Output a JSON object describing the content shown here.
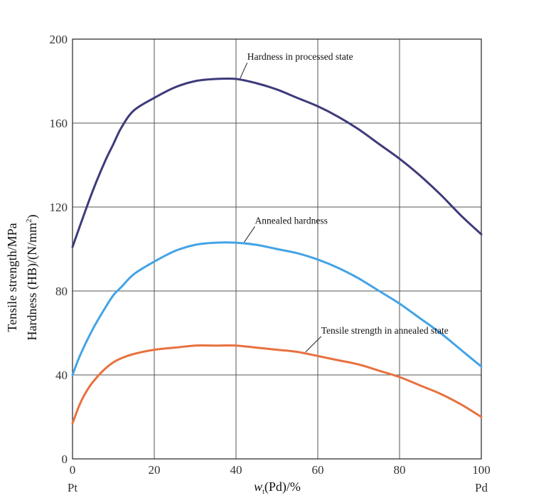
{
  "chart_data": {
    "type": "line",
    "xlabel": {
      "var": "w",
      "sub": "t",
      "rest": "(Pd)/%"
    },
    "ylabel_line1": "Tensile strength/MPa",
    "ylabel_line2_main": "Hardness (HB)/(N/mm",
    "ylabel_line2_sup": "2",
    "ylabel_line2_end": ")",
    "x_end_labels": {
      "left": "Pt",
      "right": "Pd"
    },
    "xlim": [
      0,
      100
    ],
    "ylim": [
      0,
      200
    ],
    "xticks": [
      0,
      20,
      40,
      60,
      80,
      100
    ],
    "yticks": [
      0,
      40,
      80,
      120,
      160,
      200
    ],
    "grid": true,
    "series": [
      {
        "name": "Hardness in processed state",
        "color": "#3d3b7a",
        "x": [
          0,
          2,
          5,
          8,
          10,
          12,
          15,
          20,
          25,
          30,
          35,
          40,
          45,
          50,
          55,
          60,
          65,
          70,
          75,
          80,
          85,
          90,
          95,
          100
        ],
        "values": [
          101,
          112,
          128,
          142,
          150,
          158,
          166,
          172,
          177,
          180,
          181,
          181,
          179,
          176,
          172,
          168,
          163,
          157,
          150,
          143,
          135,
          126,
          116,
          107
        ]
      },
      {
        "name": "Annealed hardness",
        "color": "#43a3e6",
        "x": [
          0,
          2,
          5,
          8,
          10,
          12,
          15,
          20,
          25,
          30,
          35,
          40,
          45,
          50,
          55,
          60,
          65,
          70,
          75,
          80,
          85,
          90,
          95,
          100
        ],
        "values": [
          40,
          50,
          62,
          72,
          78,
          82,
          88,
          94,
          99,
          102,
          103,
          103,
          102,
          100,
          98,
          95,
          91,
          86,
          80,
          74,
          67,
          60,
          52,
          44
        ]
      },
      {
        "name": "Tensile strength in annealed state",
        "color": "#e8713f",
        "x": [
          0,
          2,
          4,
          6,
          8,
          10,
          12,
          15,
          20,
          25,
          30,
          35,
          40,
          45,
          50,
          55,
          60,
          65,
          70,
          75,
          80,
          85,
          90,
          95,
          100
        ],
        "values": [
          17,
          27,
          34,
          39,
          43,
          46,
          48,
          50,
          52,
          53,
          54,
          54,
          54,
          53,
          52,
          51,
          49,
          47,
          45,
          42,
          39,
          35,
          31,
          26,
          20
        ]
      }
    ],
    "annotations": [
      {
        "text": "Hardness in processed state",
        "series": 0,
        "at_x": 41
      },
      {
        "text": "Annealed hardness",
        "series": 1,
        "at_x": 42
      },
      {
        "text": "Tensile strength in annealed state",
        "series": 2,
        "at_x": 57
      }
    ]
  }
}
